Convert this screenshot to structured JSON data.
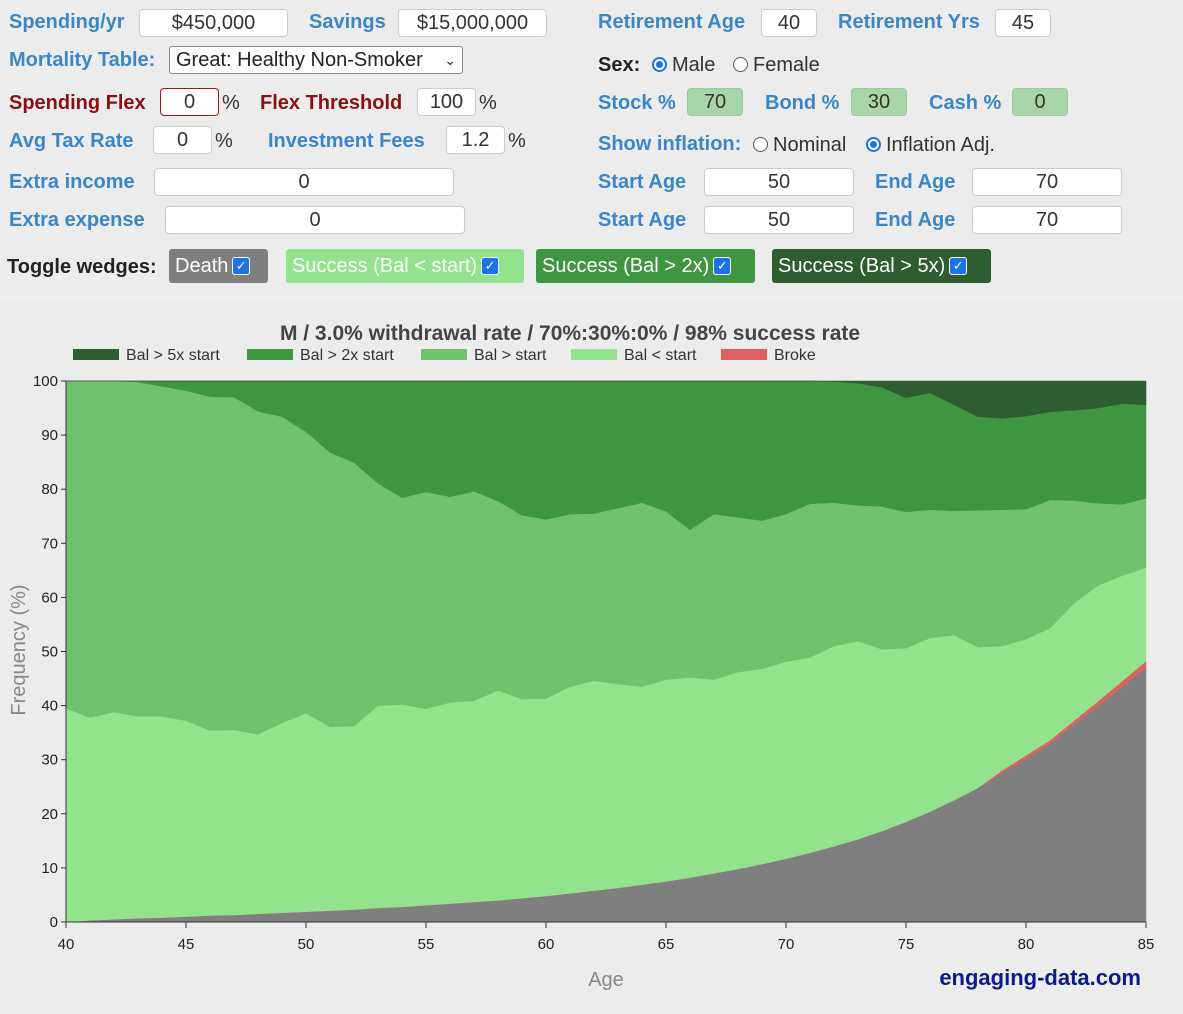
{
  "controls": {
    "spending_label": "Spending/yr",
    "spending_value": "$450,000",
    "savings_label": "Savings",
    "savings_value": "$15,000,000",
    "retirement_age_label": "Retirement Age",
    "retirement_age_value": "40",
    "retirement_yrs_label": "Retirement Yrs",
    "retirement_yrs_value": "45",
    "mortality_label": "Mortality Table:",
    "mortality_value": "Great: Healthy Non-Smoker",
    "sex_label": "Sex:",
    "sex_male": "Male",
    "sex_female": "Female",
    "spending_flex_label": "Spending Flex",
    "spending_flex_value": "0",
    "flex_threshold_label": "Flex Threshold",
    "flex_threshold_value": "100",
    "stock_label": "Stock %",
    "stock_value": "70",
    "bond_label": "Bond %",
    "bond_value": "30",
    "cash_label": "Cash %",
    "cash_value": "0",
    "avg_tax_label": "Avg Tax Rate",
    "avg_tax_value": "0",
    "fees_label": "Investment Fees",
    "fees_value": "1.2",
    "inflation_label": "Show inflation:",
    "inflation_nominal": "Nominal",
    "inflation_adj": "Inflation Adj.",
    "extra_income_label": "Extra income",
    "extra_income_value": "0",
    "extra_expense_label": "Extra expense",
    "extra_expense_value": "0",
    "start_age_label": "Start Age",
    "end_age_label": "End Age",
    "income_start": "50",
    "income_end": "70",
    "expense_start": "50",
    "expense_end": "70",
    "percent": "%",
    "toggle_label": "Toggle wedges:",
    "wedge_death": "Death",
    "wedge_lt": "Success (Bal < start)",
    "wedge_2x": "Success (Bal > 2x)",
    "wedge_5x": "Success (Bal > 5x)"
  },
  "colors": {
    "death": "#7f7f7f",
    "broke": "#e06060",
    "lt": "#93e38e",
    "gt": "#70c26e",
    "gt2": "#3f9640",
    "gt5": "#2e5e30"
  },
  "credit": "engaging-data.com",
  "chart_data": {
    "type": "area",
    "title": "M / 3.0% withdrawal rate / 70%:30%:0% / 98% success rate",
    "xlabel": "Age",
    "ylabel": "Frequency (%)",
    "xlim": [
      40,
      85
    ],
    "ylim": [
      0,
      100
    ],
    "xticks": [
      "40",
      "45",
      "50",
      "55",
      "60",
      "65",
      "70",
      "75",
      "80",
      "85"
    ],
    "yticks": [
      "0",
      "10",
      "20",
      "30",
      "40",
      "50",
      "60",
      "70",
      "80",
      "90",
      "100"
    ],
    "legend_position": "top",
    "legend": [
      "Bal > 5x start",
      "Bal > 2x start",
      "Bal > start",
      "Bal < start",
      "Broke"
    ],
    "x": [
      40,
      41,
      42,
      43,
      44,
      45,
      46,
      47,
      48,
      49,
      50,
      51,
      52,
      53,
      54,
      55,
      56,
      57,
      58,
      59,
      60,
      61,
      62,
      63,
      64,
      65,
      66,
      67,
      68,
      69,
      70,
      71,
      72,
      73,
      74,
      75,
      76,
      77,
      78,
      79,
      80,
      81,
      82,
      83,
      84,
      85
    ],
    "stacked_cumulative": {
      "death": [
        0,
        0.3,
        0.5,
        0.7,
        0.8,
        1.0,
        1.2,
        1.3,
        1.5,
        1.7,
        1.9,
        2.1,
        2.3,
        2.6,
        2.8,
        3.1,
        3.4,
        3.7,
        4.0,
        4.4,
        4.8,
        5.3,
        5.8,
        6.3,
        6.9,
        7.5,
        8.2,
        9.0,
        9.8,
        10.7,
        11.7,
        12.8,
        14.0,
        15.3,
        16.8,
        18.5,
        20.4,
        22.5,
        24.8,
        27.5,
        30.2,
        33.0,
        36.5,
        40.0,
        43.5,
        47.0
      ],
      "broke": [
        0,
        0.3,
        0.5,
        0.7,
        0.8,
        1.0,
        1.2,
        1.3,
        1.5,
        1.7,
        1.9,
        2.1,
        2.3,
        2.6,
        2.8,
        3.1,
        3.4,
        3.7,
        4.0,
        4.4,
        4.8,
        5.3,
        5.8,
        6.3,
        6.9,
        7.5,
        8.2,
        9.0,
        9.8,
        10.7,
        11.7,
        12.8,
        14.0,
        15.3,
        16.8,
        18.5,
        20.4,
        22.5,
        24.8,
        28.0,
        30.8,
        33.6,
        37.2,
        40.8,
        44.5,
        48.2
      ],
      "bal_lt_start": [
        39.5,
        37.8,
        38.8,
        38.0,
        38.0,
        37.2,
        35.4,
        35.5,
        34.7,
        36.8,
        38.6,
        36.1,
        36.2,
        40.0,
        40.2,
        39.4,
        40.6,
        40.9,
        42.8,
        41.2,
        41.3,
        43.5,
        44.6,
        44.0,
        43.5,
        44.8,
        45.2,
        44.8,
        46.2,
        46.8,
        48.1,
        48.9,
        51.0,
        51.9,
        50.4,
        50.6,
        52.5,
        53.0,
        50.8,
        51.0,
        52.3,
        54.3,
        58.9,
        62.2,
        64.0,
        65.5
      ],
      "bal_gt_start": [
        100,
        100,
        100,
        99.8,
        99.0,
        98.2,
        97.1,
        97.0,
        94.4,
        93.4,
        90.6,
        86.8,
        84.9,
        81.1,
        78.4,
        79.5,
        78.6,
        79.6,
        77.8,
        75.2,
        74.4,
        75.4,
        75.5,
        76.5,
        77.5,
        75.9,
        72.5,
        75.4,
        74.8,
        74.2,
        75.4,
        77.3,
        77.5,
        77.0,
        76.8,
        75.8,
        76.2,
        76.0,
        76.1,
        76.2,
        76.3,
        78.0,
        77.9,
        77.4,
        77.2,
        78.3
      ],
      "bal_gt_2x": [
        100,
        100,
        100,
        100,
        100,
        100,
        100,
        100,
        100,
        100,
        100,
        100,
        100,
        100,
        100,
        100,
        100,
        100,
        100,
        100,
        100,
        100,
        100,
        100,
        100,
        100,
        100,
        100,
        100,
        100,
        100,
        100,
        99.9,
        99.6,
        98.8,
        96.9,
        97.8,
        95.6,
        93.4,
        93.1,
        93.5,
        94.3,
        94.6,
        95.0,
        95.8,
        95.6
      ],
      "bal_gt_5x": [
        100,
        100,
        100,
        100,
        100,
        100,
        100,
        100,
        100,
        100,
        100,
        100,
        100,
        100,
        100,
        100,
        100,
        100,
        100,
        100,
        100,
        100,
        100,
        100,
        100,
        100,
        100,
        100,
        100,
        100,
        100,
        100,
        100,
        100,
        100,
        100,
        100,
        100,
        100,
        100,
        100,
        100,
        100,
        100,
        100,
        100
      ]
    }
  }
}
